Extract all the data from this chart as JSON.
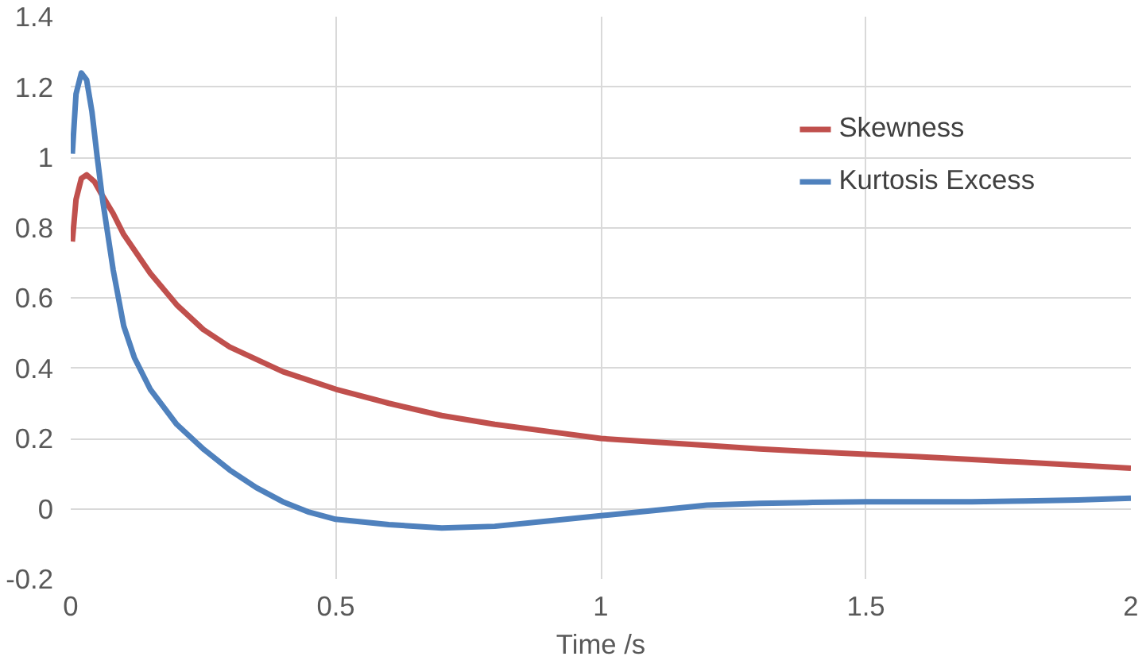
{
  "chart_data": {
    "type": "line",
    "xlabel": "Time /s",
    "xlim": [
      0,
      2
    ],
    "ylim": [
      -0.2,
      1.4
    ],
    "xticks": [
      0,
      0.5,
      1,
      1.5,
      2
    ],
    "yticks": [
      -0.2,
      0,
      0.2,
      0.4,
      0.6,
      0.8,
      1,
      1.2,
      1.4
    ],
    "grid": true,
    "legend": "top right",
    "line_style": "solid",
    "marker": "none",
    "series": [
      {
        "name": "Skewness",
        "color": "#c0504d",
        "x": [
          0.003,
          0.01,
          0.02,
          0.03,
          0.045,
          0.06,
          0.08,
          0.1,
          0.15,
          0.2,
          0.25,
          0.3,
          0.4,
          0.5,
          0.6,
          0.7,
          0.8,
          0.9,
          1.0,
          1.1,
          1.2,
          1.3,
          1.4,
          1.5,
          1.6,
          1.7,
          1.8,
          1.9,
          2.0
        ],
        "values": [
          0.76,
          0.88,
          0.94,
          0.95,
          0.93,
          0.89,
          0.84,
          0.78,
          0.67,
          0.58,
          0.51,
          0.46,
          0.39,
          0.34,
          0.3,
          0.265,
          0.24,
          0.22,
          0.2,
          0.19,
          0.18,
          0.17,
          0.162,
          0.155,
          0.148,
          0.14,
          0.132,
          0.124,
          0.115
        ]
      },
      {
        "name": "Kurtosis Excess",
        "color": "#4f81bd",
        "x": [
          0.003,
          0.01,
          0.02,
          0.03,
          0.04,
          0.05,
          0.06,
          0.08,
          0.1,
          0.12,
          0.15,
          0.2,
          0.25,
          0.3,
          0.35,
          0.4,
          0.45,
          0.5,
          0.6,
          0.7,
          0.8,
          0.9,
          1.0,
          1.1,
          1.2,
          1.3,
          1.4,
          1.5,
          1.6,
          1.7,
          1.8,
          1.9,
          2.0
        ],
        "values": [
          1.01,
          1.18,
          1.24,
          1.22,
          1.13,
          1.0,
          0.88,
          0.68,
          0.52,
          0.43,
          0.34,
          0.24,
          0.17,
          0.11,
          0.06,
          0.02,
          -0.01,
          -0.03,
          -0.045,
          -0.055,
          -0.05,
          -0.035,
          -0.02,
          -0.005,
          0.01,
          0.015,
          0.018,
          0.02,
          0.02,
          0.02,
          0.022,
          0.025,
          0.03
        ]
      }
    ]
  }
}
